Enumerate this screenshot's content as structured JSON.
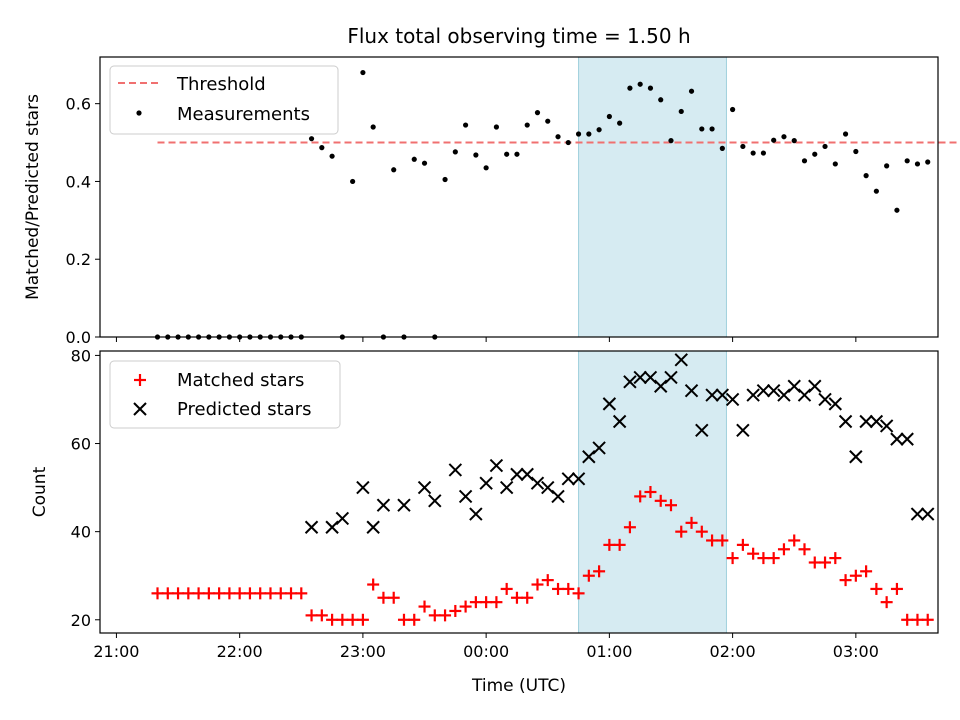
{
  "chart_data": [
    {
      "type": "scatter",
      "title": "Flux total observing time = 1.50 h",
      "xlabel": "",
      "ylabel": "Matched/Predicted stars",
      "ylim": [
        0,
        0.72
      ],
      "yticks": [
        "0.0",
        "0.2",
        "0.4",
        "0.6"
      ],
      "shaded_region": [
        "00:45",
        "01:57"
      ],
      "legend": "upper-left",
      "series": [
        {
          "name": "Threshold",
          "style": "dashed-line",
          "color": "#f07070",
          "x": [
            "21:20",
            "03:50"
          ],
          "y": [
            0.5,
            0.5
          ]
        },
        {
          "name": "Measurements",
          "style": "dot",
          "color": "#000000",
          "x": [
            "21:20",
            "21:25",
            "21:30",
            "21:35",
            "21:40",
            "21:45",
            "21:50",
            "21:55",
            "22:00",
            "22:05",
            "22:10",
            "22:15",
            "22:20",
            "22:25",
            "22:30",
            "22:35",
            "22:40",
            "22:45",
            "22:50",
            "22:55",
            "23:00",
            "23:05",
            "23:10",
            "23:15",
            "23:20",
            "23:25",
            "23:30",
            "23:35",
            "23:40",
            "23:45",
            "23:50",
            "23:55",
            "00:00",
            "00:05",
            "00:10",
            "00:15",
            "00:20",
            "00:25",
            "00:30",
            "00:35",
            "00:40",
            "00:45",
            "00:50",
            "00:55",
            "01:00",
            "01:05",
            "01:10",
            "01:15",
            "01:20",
            "01:25",
            "01:30",
            "01:35",
            "01:40",
            "01:45",
            "01:50",
            "01:55",
            "02:00",
            "02:05",
            "02:10",
            "02:15",
            "02:20",
            "02:25",
            "02:30",
            "02:35",
            "02:40",
            "02:45",
            "02:50",
            "02:55",
            "03:00",
            "03:05",
            "03:10",
            "03:15",
            "03:20",
            "03:25",
            "03:30",
            "03:35"
          ],
          "y": [
            0,
            0,
            0,
            0,
            0,
            0,
            0,
            0,
            0,
            0,
            0,
            0,
            0,
            0,
            0,
            0.51,
            0.487,
            0.465,
            0,
            0.4,
            0.68,
            0.54,
            0,
            0.43,
            0,
            0.457,
            0.447,
            0,
            0.405,
            0.476,
            0.545,
            0.468,
            0.435,
            0.54,
            0.47,
            0.47,
            0.545,
            0.577,
            0.555,
            0.515,
            0.5,
            0.522,
            0.522,
            0.533,
            0.567,
            0.55,
            0.64,
            0.65,
            0.64,
            0.61,
            0.505,
            0.58,
            0.632,
            0.535,
            0.535,
            0.485,
            0.585,
            0.49,
            0.473,
            0.473,
            0.506,
            0.515,
            0.505,
            0.453,
            0.47,
            0.49,
            0.445,
            0.522,
            0.477,
            0.415,
            0.375,
            0.44,
            0.326,
            0.453,
            0.445,
            0.45
          ]
        }
      ]
    },
    {
      "type": "scatter",
      "title": "",
      "xlabel": "Time (UTC)",
      "ylabel": "Count",
      "ylim": [
        17,
        81
      ],
      "yticks": [
        "20",
        "40",
        "60",
        "80"
      ],
      "xticks": [
        "21:00",
        "22:00",
        "23:00",
        "00:00",
        "01:00",
        "02:00",
        "03:00"
      ],
      "shaded_region": [
        "00:45",
        "01:57"
      ],
      "legend": "upper-left",
      "series": [
        {
          "name": "Matched stars",
          "style": "plus",
          "color": "#ff0000",
          "x": [
            "21:20",
            "21:25",
            "21:30",
            "21:35",
            "21:40",
            "21:45",
            "21:50",
            "21:55",
            "22:00",
            "22:05",
            "22:10",
            "22:15",
            "22:20",
            "22:25",
            "22:30",
            "22:35",
            "22:40",
            "22:45",
            "22:50",
            "22:55",
            "23:00",
            "23:05",
            "23:10",
            "23:15",
            "23:20",
            "23:25",
            "23:30",
            "23:35",
            "23:40",
            "23:45",
            "23:50",
            "23:55",
            "00:00",
            "00:05",
            "00:10",
            "00:15",
            "00:20",
            "00:25",
            "00:30",
            "00:35",
            "00:40",
            "00:45",
            "00:50",
            "00:55",
            "01:00",
            "01:05",
            "01:10",
            "01:15",
            "01:20",
            "01:25",
            "01:30",
            "01:35",
            "01:40",
            "01:45",
            "01:50",
            "01:55",
            "02:00",
            "02:05",
            "02:10",
            "02:15",
            "02:20",
            "02:25",
            "02:30",
            "02:35",
            "02:40",
            "02:45",
            "02:50",
            "02:55",
            "03:00",
            "03:05",
            "03:10",
            "03:15",
            "03:20",
            "03:25",
            "03:30",
            "03:35"
          ],
          "y": [
            26,
            26,
            26,
            26,
            26,
            26,
            26,
            26,
            26,
            26,
            26,
            26,
            26,
            26,
            26,
            21,
            21,
            20,
            20,
            20,
            20,
            28,
            25,
            25,
            20,
            20,
            23,
            21,
            21,
            22,
            23,
            24,
            24,
            24,
            27,
            25,
            25,
            28,
            29,
            27,
            27,
            26,
            30,
            31,
            37,
            37,
            41,
            48,
            49,
            47,
            46,
            40,
            42,
            40,
            38,
            38,
            34,
            37,
            35,
            34,
            34,
            36,
            38,
            36,
            33,
            33,
            34,
            29,
            30,
            31,
            27,
            24,
            27,
            20,
            20,
            20
          ]
        },
        {
          "name": "Predicted stars",
          "style": "x",
          "color": "#000000",
          "x": [
            "22:35",
            "22:45",
            "22:50",
            "23:00",
            "23:05",
            "23:10",
            "23:20",
            "23:30",
            "23:35",
            "23:45",
            "23:50",
            "23:55",
            "00:00",
            "00:05",
            "00:10",
            "00:15",
            "00:20",
            "00:25",
            "00:30",
            "00:35",
            "00:40",
            "00:45",
            "00:50",
            "00:55",
            "01:00",
            "01:05",
            "01:10",
            "01:15",
            "01:20",
            "01:25",
            "01:30",
            "01:35",
            "01:40",
            "01:45",
            "01:50",
            "01:55",
            "02:00",
            "02:05",
            "02:10",
            "02:15",
            "02:20",
            "02:25",
            "02:30",
            "02:35",
            "02:40",
            "02:45",
            "02:50",
            "02:55",
            "03:00",
            "03:05",
            "03:10",
            "03:15",
            "03:20",
            "03:25",
            "03:30",
            "03:35"
          ],
          "y": [
            41,
            41,
            43,
            50,
            41,
            46,
            46,
            50,
            47,
            54,
            48,
            44,
            51,
            55,
            50,
            53,
            53,
            51,
            50,
            48,
            52,
            52,
            57,
            59,
            69,
            65,
            74,
            75,
            75,
            73,
            75,
            79,
            72,
            63,
            71,
            71,
            70,
            63,
            71,
            72,
            72,
            71,
            73,
            71,
            73,
            70,
            69,
            65,
            57,
            65,
            65,
            64,
            61,
            61,
            44,
            44
          ]
        }
      ]
    }
  ]
}
